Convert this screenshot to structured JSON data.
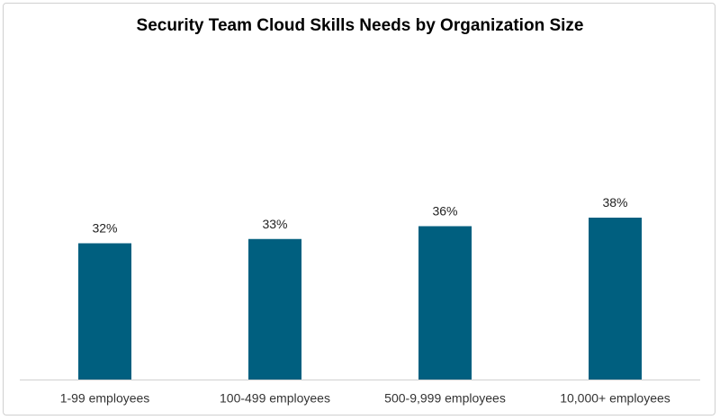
{
  "chart_data": {
    "type": "bar",
    "title": "Security Team Cloud Skills Needs by Organization Size",
    "categories": [
      "1-99 employees",
      "100-499 employees",
      "500-9,999 employees",
      "10,000+ employees"
    ],
    "values": [
      32,
      33,
      36,
      38
    ],
    "data_labels": [
      "32%",
      "33%",
      "36%",
      "38%"
    ],
    "xlabel": "",
    "ylabel": "",
    "ylim": [
      0,
      60
    ],
    "grid": false,
    "legend": "none",
    "bar_color": "#005F7F"
  }
}
